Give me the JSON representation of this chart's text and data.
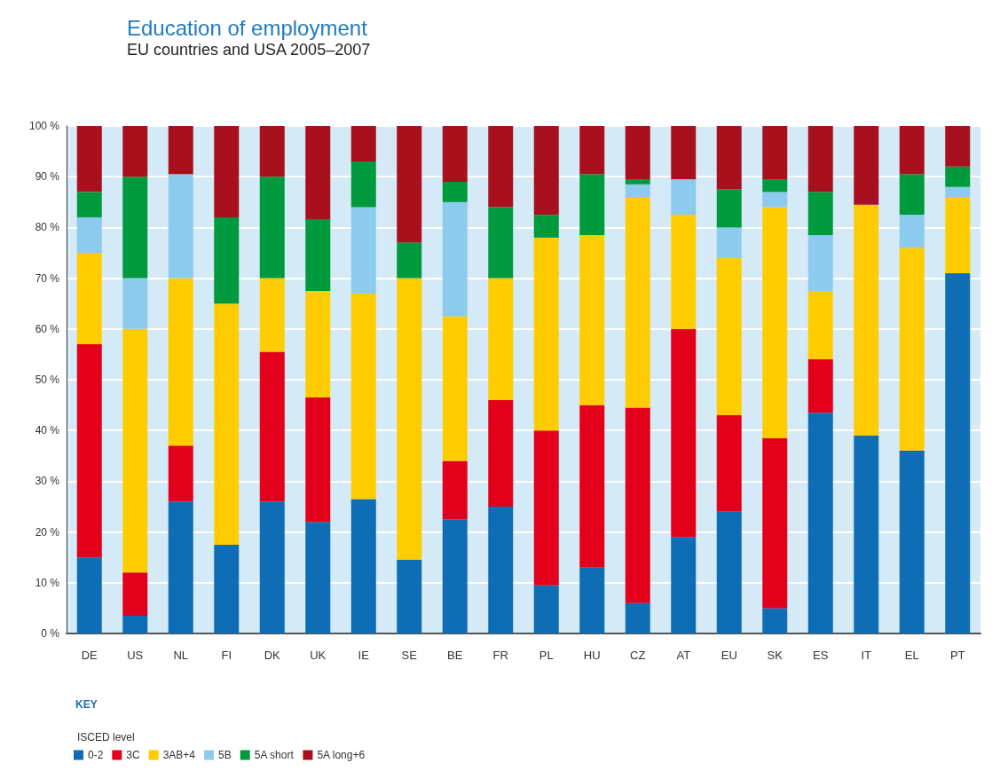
{
  "chart_data": {
    "type": "bar",
    "title": "Education of employment",
    "subtitle": "EU countries and USA 2005–2007",
    "stacked": true,
    "categories": [
      "DE",
      "US",
      "NL",
      "FI",
      "DK",
      "UK",
      "IE",
      "SE",
      "BE",
      "FR",
      "PL",
      "HU",
      "CZ",
      "AT",
      "EU",
      "SK",
      "ES",
      "IT",
      "EL",
      "PT"
    ],
    "series": [
      {
        "name": "0-2",
        "color": "#0f6db5",
        "values": [
          15,
          3.5,
          26,
          17.5,
          26,
          22,
          26.5,
          14.5,
          22.5,
          25,
          9.5,
          13,
          6,
          19,
          24,
          5,
          43.5,
          39,
          36,
          71
        ]
      },
      {
        "name": "3C",
        "color": "#e2001a",
        "values": [
          42,
          8.5,
          11,
          0,
          29.5,
          24.5,
          0,
          0,
          11.5,
          21,
          30.5,
          32,
          38.5,
          41,
          19,
          33.5,
          10.5,
          0,
          0,
          0
        ]
      },
      {
        "name": "3AB+4",
        "color": "#ffcc00",
        "values": [
          18,
          48,
          33,
          47.5,
          14.5,
          21,
          40.5,
          55.5,
          28.5,
          24,
          38,
          33.5,
          41.5,
          22.5,
          31,
          45.5,
          13.5,
          45.5,
          40,
          15
        ]
      },
      {
        "name": "5B",
        "color": "#8ccbee",
        "values": [
          7,
          10,
          20.5,
          0,
          0,
          0,
          17,
          0,
          22.5,
          0,
          0,
          0,
          2.5,
          7,
          6,
          3,
          11,
          0,
          6.5,
          2
        ]
      },
      {
        "name": "5A short",
        "color": "#009a3e",
        "values": [
          5,
          20,
          0,
          17,
          20,
          14,
          9,
          7,
          4,
          14,
          4.5,
          12,
          1,
          0,
          7.5,
          2.5,
          8.5,
          0,
          8,
          4
        ]
      },
      {
        "name": "5A long+6",
        "color": "#a8101d",
        "values": [
          13,
          10,
          9.5,
          18,
          10,
          18.5,
          7,
          23,
          11,
          16,
          17.5,
          9.5,
          10.5,
          10.5,
          12.5,
          10.5,
          13,
          15.5,
          9.5,
          8
        ]
      }
    ],
    "ylim": [
      0,
      100
    ],
    "yticks": [
      {
        "value": 0,
        "label": "0 %"
      },
      {
        "value": 10,
        "label": "10 %"
      },
      {
        "value": 20,
        "label": "20 %"
      },
      {
        "value": 30,
        "label": "30 %"
      },
      {
        "value": 40,
        "label": "40 %"
      },
      {
        "value": 50,
        "label": "50 %"
      },
      {
        "value": 60,
        "label": "60 %"
      },
      {
        "value": 70,
        "label": "70 %"
      },
      {
        "value": 80,
        "label": "80 %"
      },
      {
        "value": 90,
        "label": "90 %"
      },
      {
        "value": 100,
        "label": "100 %"
      }
    ],
    "grid": "y",
    "legend": "bottom left",
    "legend_title": "ISCED level",
    "annotations": [
      "KEY"
    ]
  }
}
